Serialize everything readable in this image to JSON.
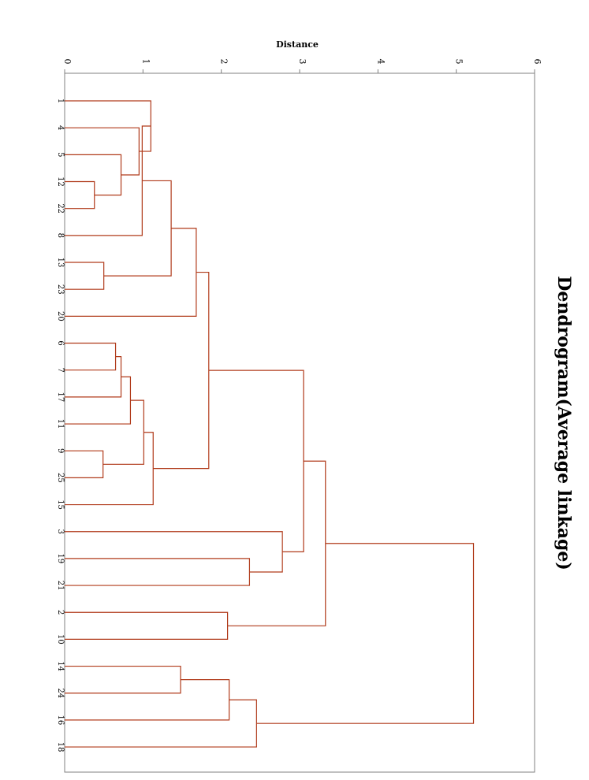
{
  "chart_data": {
    "type": "dendrogram",
    "title": "Dendrogram(Average linkage)",
    "xlabel": "Distance",
    "xlim": [
      0,
      6
    ],
    "x_ticks": [
      "0",
      "1",
      "2",
      "3",
      "4",
      "5",
      "6"
    ],
    "leaves": [
      "1",
      "4",
      "5",
      "12",
      "22",
      "8",
      "13",
      "23",
      "20",
      "6",
      "7",
      "17",
      "11",
      "9",
      "25",
      "15",
      "3",
      "19",
      "21",
      "2",
      "10",
      "14",
      "24",
      "16",
      "18"
    ],
    "merges": [
      {
        "a": "L12",
        "b": "L22",
        "height": 0.38
      },
      {
        "a": "L5",
        "b": "M0",
        "height": 0.72
      },
      {
        "a": "L4",
        "b": "M1",
        "height": 0.95
      },
      {
        "a": "L1",
        "b": "M2",
        "height": 1.1
      },
      {
        "a": "M3",
        "b": "L8",
        "height": 0.99
      },
      {
        "a": "L13",
        "b": "L23",
        "height": 0.5
      },
      {
        "a": "M4",
        "b": "M5",
        "height": 1.36
      },
      {
        "a": "M6",
        "b": "L20",
        "height": 1.68
      },
      {
        "a": "L6",
        "b": "L7",
        "height": 0.65
      },
      {
        "a": "M8",
        "b": "L17",
        "height": 0.72
      },
      {
        "a": "M9",
        "b": "L11",
        "height": 0.84
      },
      {
        "a": "L9",
        "b": "L25",
        "height": 0.49
      },
      {
        "a": "M10",
        "b": "M11",
        "height": 1.01
      },
      {
        "a": "M12",
        "b": "L15",
        "height": 1.13
      },
      {
        "a": "M7",
        "b": "M13",
        "height": 1.84
      },
      {
        "a": "L19",
        "b": "L21",
        "height": 2.36
      },
      {
        "a": "L3",
        "b": "M15",
        "height": 2.78
      },
      {
        "a": "M14",
        "b": "M16",
        "height": 3.05
      },
      {
        "a": "L2",
        "b": "L10",
        "height": 2.08
      },
      {
        "a": "M17",
        "b": "M18",
        "height": 3.33
      },
      {
        "a": "L14",
        "b": "L24",
        "height": 1.48
      },
      {
        "a": "M20",
        "b": "L16",
        "height": 2.1
      },
      {
        "a": "M21",
        "b": "L18",
        "height": 2.45
      },
      {
        "a": "M19",
        "b": "M22",
        "height": 5.22
      }
    ],
    "color": "#b03a1a"
  }
}
